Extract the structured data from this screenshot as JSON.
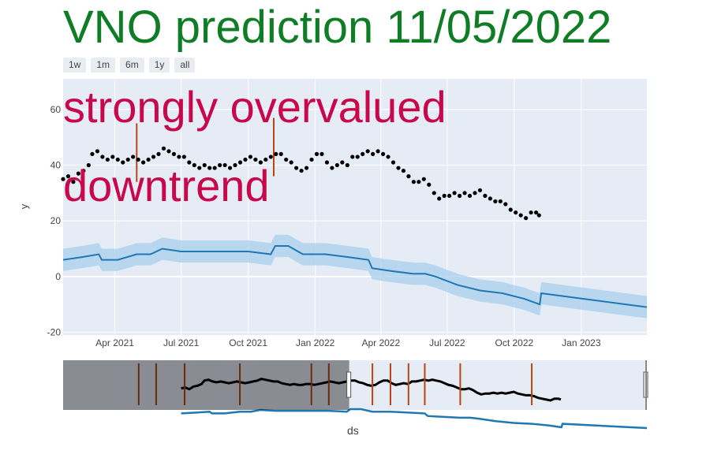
{
  "title": "VNO prediction 11/05/2022",
  "range_buttons": [
    "1w",
    "1m",
    "6m",
    "1y",
    "all"
  ],
  "annotations": [
    "strongly overvalued",
    "downtrend"
  ],
  "chart_data": {
    "type": "line",
    "title": "VNO prediction 11/05/2022",
    "xlabel": "ds",
    "ylabel": "y",
    "ylim": [
      -21,
      71
    ],
    "x_range": [
      "2021-01-20",
      "2023-04-01"
    ],
    "x_ticks": [
      "Apr 2021",
      "Jul 2021",
      "Oct 2021",
      "Jan 2022",
      "Apr 2022",
      "Jul 2022",
      "Oct 2022",
      "Jan 2023"
    ],
    "y_ticks": [
      -20,
      0,
      20,
      40,
      60
    ],
    "grid": true,
    "series": [
      {
        "kind": "scatter",
        "color": "#000000",
        "points": [
          [
            "2021-01-20",
            35
          ],
          [
            "2021-01-27",
            36
          ],
          [
            "2021-02-03",
            34
          ],
          [
            "2021-02-10",
            37
          ],
          [
            "2021-02-17",
            38
          ],
          [
            "2021-02-24",
            40
          ],
          [
            "2021-03-01",
            44
          ],
          [
            "2021-03-08",
            45
          ],
          [
            "2021-03-15",
            43
          ],
          [
            "2021-03-22",
            42
          ],
          [
            "2021-03-29",
            43
          ],
          [
            "2021-04-05",
            42
          ],
          [
            "2021-04-12",
            41
          ],
          [
            "2021-04-19",
            42
          ],
          [
            "2021-04-26",
            43
          ],
          [
            "2021-05-03",
            42
          ],
          [
            "2021-05-10",
            41
          ],
          [
            "2021-05-17",
            42
          ],
          [
            "2021-05-24",
            43
          ],
          [
            "2021-05-31",
            44
          ],
          [
            "2021-06-07",
            46
          ],
          [
            "2021-06-14",
            45
          ],
          [
            "2021-06-21",
            44
          ],
          [
            "2021-06-28",
            43
          ],
          [
            "2021-07-05",
            43
          ],
          [
            "2021-07-12",
            41
          ],
          [
            "2021-07-19",
            40
          ],
          [
            "2021-07-26",
            39
          ],
          [
            "2021-08-02",
            40
          ],
          [
            "2021-08-09",
            39
          ],
          [
            "2021-08-16",
            39
          ],
          [
            "2021-08-23",
            40
          ],
          [
            "2021-08-30",
            40
          ],
          [
            "2021-09-06",
            39
          ],
          [
            "2021-09-13",
            40
          ],
          [
            "2021-09-20",
            41
          ],
          [
            "2021-09-27",
            42
          ],
          [
            "2021-10-04",
            43
          ],
          [
            "2021-10-11",
            42
          ],
          [
            "2021-10-18",
            41
          ],
          [
            "2021-10-25",
            42
          ],
          [
            "2021-11-01",
            43
          ],
          [
            "2021-11-08",
            44
          ],
          [
            "2021-11-15",
            44
          ],
          [
            "2021-11-22",
            42
          ],
          [
            "2021-11-29",
            41
          ],
          [
            "2021-12-06",
            39
          ],
          [
            "2021-12-13",
            38
          ],
          [
            "2021-12-20",
            39
          ],
          [
            "2021-12-27",
            42
          ],
          [
            "2022-01-03",
            44
          ],
          [
            "2022-01-10",
            44
          ],
          [
            "2022-01-17",
            41
          ],
          [
            "2022-01-24",
            39
          ],
          [
            "2022-01-31",
            40
          ],
          [
            "2022-02-07",
            41
          ],
          [
            "2022-02-14",
            40
          ],
          [
            "2022-02-21",
            43
          ],
          [
            "2022-02-28",
            43
          ],
          [
            "2022-03-07",
            44
          ],
          [
            "2022-03-14",
            45
          ],
          [
            "2022-03-21",
            44
          ],
          [
            "2022-03-28",
            45
          ],
          [
            "2022-04-04",
            44
          ],
          [
            "2022-04-11",
            43
          ],
          [
            "2022-04-18",
            41
          ],
          [
            "2022-04-25",
            39
          ],
          [
            "2022-05-02",
            38
          ],
          [
            "2022-05-09",
            36
          ],
          [
            "2022-05-16",
            34
          ],
          [
            "2022-05-23",
            34
          ],
          [
            "2022-05-30",
            35
          ],
          [
            "2022-06-06",
            33
          ],
          [
            "2022-06-13",
            30
          ],
          [
            "2022-06-20",
            28
          ],
          [
            "2022-06-27",
            29
          ],
          [
            "2022-07-04",
            29
          ],
          [
            "2022-07-11",
            30
          ],
          [
            "2022-07-18",
            29
          ],
          [
            "2022-07-25",
            30
          ],
          [
            "2022-08-01",
            29
          ],
          [
            "2022-08-08",
            30
          ],
          [
            "2022-08-15",
            31
          ],
          [
            "2022-08-22",
            29
          ],
          [
            "2022-08-29",
            28
          ],
          [
            "2022-09-05",
            27
          ],
          [
            "2022-09-12",
            27
          ],
          [
            "2022-09-19",
            26
          ],
          [
            "2022-09-26",
            24
          ],
          [
            "2022-10-03",
            23
          ],
          [
            "2022-10-10",
            22
          ],
          [
            "2022-10-17",
            21
          ],
          [
            "2022-10-24",
            23
          ],
          [
            "2022-10-31",
            23
          ],
          [
            "2022-11-04",
            22
          ]
        ]
      },
      {
        "kind": "line",
        "name": "",
        "color": "#1f77b4",
        "band_color": "#a9cfec",
        "points": [
          [
            "2021-01-20",
            6,
            2,
            10
          ],
          [
            "2021-02-15",
            7,
            3,
            11
          ],
          [
            "2021-03-10",
            8,
            4,
            12
          ],
          [
            "2021-03-14",
            6,
            2,
            10
          ],
          [
            "2021-04-05",
            6,
            2,
            10
          ],
          [
            "2021-05-01",
            8,
            4,
            12
          ],
          [
            "2021-05-20",
            8,
            4,
            12
          ],
          [
            "2021-06-05",
            10,
            6,
            14
          ],
          [
            "2021-07-01",
            9,
            5,
            13
          ],
          [
            "2021-08-01",
            9,
            5,
            13
          ],
          [
            "2021-09-01",
            9,
            5,
            13
          ],
          [
            "2021-10-01",
            9,
            5,
            13
          ],
          [
            "2021-11-01",
            8,
            4,
            12
          ],
          [
            "2021-11-07",
            11,
            7,
            15
          ],
          [
            "2021-11-25",
            11,
            7,
            15
          ],
          [
            "2021-12-15",
            8,
            4,
            12
          ],
          [
            "2022-01-15",
            8,
            4,
            12
          ],
          [
            "2022-02-15",
            7,
            3,
            11
          ],
          [
            "2022-03-15",
            6,
            2,
            10
          ],
          [
            "2022-03-20",
            3,
            -1,
            7
          ],
          [
            "2022-04-15",
            2,
            -2,
            6
          ],
          [
            "2022-05-15",
            1,
            -3,
            5
          ],
          [
            "2022-06-01",
            1,
            -3,
            5
          ],
          [
            "2022-06-15",
            0,
            -4,
            4
          ],
          [
            "2022-07-15",
            -3,
            -7,
            1
          ],
          [
            "2022-08-15",
            -5,
            -9,
            -1
          ],
          [
            "2022-09-15",
            -6,
            -10,
            -2
          ],
          [
            "2022-10-15",
            -8,
            -12,
            -4
          ],
          [
            "2022-11-05",
            -10,
            -14,
            -6
          ],
          [
            "2022-11-07",
            -6,
            -10,
            -2
          ],
          [
            "2023-04-01",
            -11,
            -15,
            -7
          ]
        ]
      }
    ],
    "changepoint_color": "#b5460f",
    "changepoints_main": [
      [
        "2021-05-01",
        34,
        55
      ],
      [
        "2021-11-05",
        36,
        57
      ]
    ],
    "rangeslider": {
      "selected_range": [
        "2021-11-05",
        "2023-04-01"
      ],
      "changepoints": [
        "2020-11-08",
        "2020-12-08",
        "2021-01-26",
        "2021-05-01",
        "2021-09-01",
        "2021-10-01",
        "2021-12-15",
        "2022-01-15",
        "2022-02-15",
        "2022-03-15",
        "2022-05-15",
        "2022-09-15"
      ]
    }
  }
}
